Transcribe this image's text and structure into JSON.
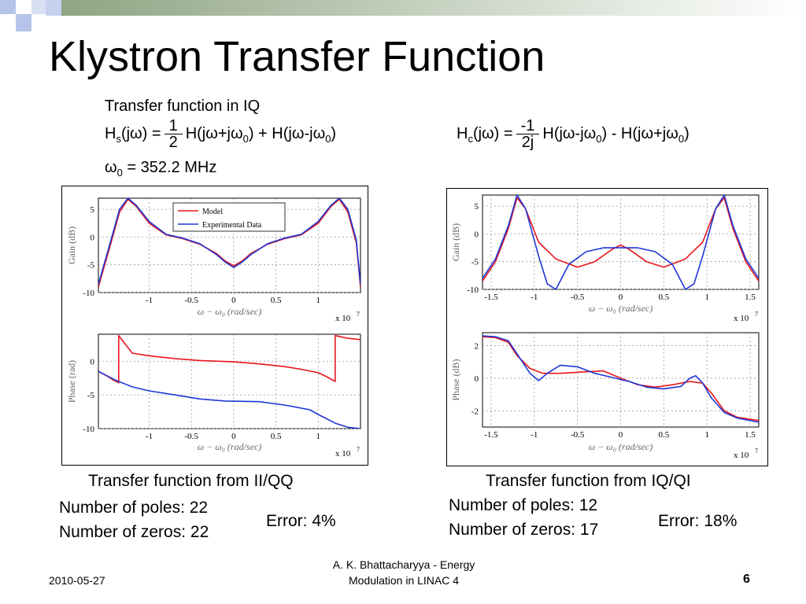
{
  "slide": {
    "title": "Klystron Transfer Function",
    "subtitle": "Transfer function in IQ",
    "hs_lhs": "H",
    "hs_sub": "s",
    "hs_arg": "(jω) =",
    "hs_num": "1",
    "hs_den": "2",
    "hs_rhs_a": "H(jω+jω",
    "hs_rhs_b": ") + H(jω-jω",
    "hs_rhs_c": ")",
    "hc_lhs": "H",
    "hc_sub": "c",
    "hc_arg": "(jω) =",
    "hc_num": "-1",
    "hc_den": "2j",
    "hc_rhs_a": "H(jω-jω",
    "hc_rhs_b": ") - H(jω+jω",
    "hc_rhs_c": ")",
    "omega_lhs": "ω",
    "omega_rhs": " = 352.2 MHz",
    "sub_zero": "0",
    "left_caption": "Transfer function from II/QQ",
    "left_poles": "Number of poles: 22",
    "left_zeros": "Number of zeros: 22",
    "left_error": "Error: 4%",
    "right_caption": "Transfer function from IQ/QI",
    "right_poles": "Number of poles: 12",
    "right_zeros": "Number of zeros: 17",
    "right_error": "Error: 18%",
    "footer_date": "2010-05-27",
    "footer_author": "A. K. Bhattacharyya - Energy Modulation in LINAC 4",
    "footer_page": "6",
    "colors": {
      "model": "#e8161c",
      "experimental": "#1f36d8",
      "bar_dark": "#9aae8e",
      "square_blue": "#b6c3ea"
    }
  },
  "chart_data": [
    {
      "type": "line",
      "xlabel": "ω − ω₀ (rad/sec)",
      "ylabel": "Gain (dB)",
      "xscale_note": "x 10",
      "xscale_exp": "7",
      "xlim": [
        -1.6,
        1.5
      ],
      "ylim": [
        -10,
        7
      ],
      "xticks": [
        -1,
        -0.5,
        0,
        0.5,
        1
      ],
      "xtick_labels": [
        "-1",
        "-0.5",
        "0",
        "0.5",
        "1"
      ],
      "yticks": [
        5,
        0,
        -5,
        -10
      ],
      "ytick_labels": [
        "5",
        "0",
        "-5",
        "-10"
      ],
      "grid": true,
      "legend": "top-center",
      "x": [
        -1.6,
        -1.45,
        -1.35,
        -1.25,
        -1.15,
        -1.0,
        -0.8,
        -0.6,
        -0.4,
        -0.2,
        -0.1,
        0,
        0.1,
        0.2,
        0.4,
        0.6,
        0.8,
        1.0,
        1.15,
        1.25,
        1.35,
        1.45,
        1.5
      ],
      "series": [
        {
          "name": "Model",
          "values": [
            -9,
            -1,
            4.5,
            6.8,
            5.5,
            2.5,
            0.4,
            -0.3,
            -1.3,
            -3,
            -4.3,
            -5.2,
            -4.3,
            -3,
            -1.3,
            -0.3,
            0.4,
            2.5,
            5.5,
            6.8,
            4.5,
            -1,
            -9
          ]
        },
        {
          "name": "Experimental Data",
          "values": [
            -8.5,
            -0.5,
            5,
            7,
            5.7,
            2.8,
            0.5,
            -0.2,
            -1.2,
            -3.2,
            -4.5,
            -5.5,
            -4.5,
            -3.2,
            -1.2,
            -0.2,
            0.5,
            2.8,
            5.7,
            7,
            5,
            -0.5,
            -8.5
          ]
        }
      ]
    },
    {
      "type": "line",
      "xlabel": "ω − ω₀ (rad/sec)",
      "ylabel": "Phase (rad)",
      "xscale_note": "x 10",
      "xscale_exp": "7",
      "xlim": [
        -1.6,
        1.5
      ],
      "ylim": [
        -10,
        4
      ],
      "xticks": [
        -1,
        -0.5,
        0,
        0.5,
        1
      ],
      "xtick_labels": [
        "-1",
        "-0.5",
        "0",
        "0.5",
        "1"
      ],
      "yticks": [
        0,
        -5,
        -10
      ],
      "ytick_labels": [
        "0",
        "-5",
        "-10"
      ],
      "grid": true,
      "series": [
        {
          "name": "Model",
          "x": [
            -1.6,
            -1.5,
            -1.42,
            -1.36,
            -1.36,
            -1.2,
            -1.0,
            -0.7,
            -0.4,
            0,
            0.3,
            0.6,
            0.8,
            1.0,
            1.1,
            1.2,
            1.2,
            1.35,
            1.5
          ],
          "values": [
            -1.5,
            -2.2,
            -2.8,
            -3.2,
            3.8,
            1.2,
            0.8,
            0.4,
            0.1,
            -0.1,
            -0.4,
            -0.8,
            -1.2,
            -1.7,
            -2.3,
            -3.0,
            3.8,
            3.4,
            3.2
          ]
        },
        {
          "name": "Experimental Data",
          "x": [
            -1.6,
            -1.4,
            -1.2,
            -1.0,
            -0.7,
            -0.4,
            -0.1,
            0.3,
            0.6,
            0.9,
            1.0,
            1.2,
            1.35,
            1.5
          ],
          "values": [
            -1.5,
            -2.8,
            -3.8,
            -4.4,
            -5.0,
            -5.6,
            -5.9,
            -6.0,
            -6.5,
            -7.2,
            -7.9,
            -9.2,
            -9.8,
            -10
          ]
        }
      ]
    },
    {
      "type": "line",
      "xlabel": "ω − ω₀ (rad/sec)",
      "ylabel": "Gain (dB)",
      "xscale_note": "x 10",
      "xscale_exp": "7",
      "xlim": [
        -1.6,
        1.6
      ],
      "ylim": [
        -10,
        7
      ],
      "xticks": [
        -1.5,
        -1,
        -0.5,
        0,
        0.5,
        1,
        1.5
      ],
      "xtick_labels": [
        "-1.5",
        "-1",
        "-0.5",
        "0",
        "0.5",
        "1",
        "1.5"
      ],
      "yticks": [
        5,
        0,
        -5,
        -10
      ],
      "ytick_labels": [
        "5",
        "0",
        "-5",
        "-10"
      ],
      "grid": true,
      "series": [
        {
          "name": "Model",
          "x": [
            -1.6,
            -1.45,
            -1.3,
            -1.2,
            -1.1,
            -0.95,
            -0.75,
            -0.5,
            -0.3,
            -0.1,
            0,
            0.1,
            0.3,
            0.5,
            0.75,
            0.95,
            1.1,
            1.2,
            1.3,
            1.45,
            1.6
          ],
          "values": [
            -8.5,
            -5,
            1,
            6.5,
            4.5,
            -1.5,
            -4.5,
            -6,
            -5,
            -2.8,
            -2,
            -2.8,
            -5,
            -6,
            -4.5,
            -1.5,
            4.5,
            6.5,
            1,
            -5,
            -8.5
          ]
        },
        {
          "name": "Experimental Data",
          "x": [
            -1.6,
            -1.45,
            -1.3,
            -1.2,
            -1.1,
            -0.95,
            -0.85,
            -0.75,
            -0.6,
            -0.4,
            -0.2,
            0,
            0.2,
            0.4,
            0.6,
            0.75,
            0.85,
            0.95,
            1.1,
            1.2,
            1.3,
            1.45,
            1.6
          ],
          "values": [
            -8,
            -4.5,
            1.5,
            7,
            4.5,
            -4,
            -9,
            -10,
            -5.5,
            -3.2,
            -2.5,
            -2.5,
            -2.5,
            -3.2,
            -5.5,
            -10,
            -9,
            -4,
            4.5,
            7,
            1.5,
            -4.5,
            -8
          ]
        }
      ]
    },
    {
      "type": "line",
      "xlabel": "ω − ω₀ (rad/sec)",
      "ylabel": "Phase (dB)",
      "xscale_note": "x 10",
      "xscale_exp": "7",
      "xlim": [
        -1.6,
        1.6
      ],
      "ylim": [
        -3,
        2.8
      ],
      "xticks": [
        -1.5,
        -1,
        -0.5,
        0,
        0.5,
        1,
        1.5
      ],
      "xtick_labels": [
        "-1.5",
        "-1",
        "-0.5",
        "0",
        "0.5",
        "1",
        "1.5"
      ],
      "yticks": [
        2,
        0,
        -2
      ],
      "ytick_labels": [
        "2",
        "0",
        "-2"
      ],
      "grid": true,
      "series": [
        {
          "name": "Model",
          "x": [
            -1.6,
            -1.45,
            -1.3,
            -1.2,
            -1.05,
            -0.9,
            -0.7,
            -0.4,
            -0.2,
            0,
            0.2,
            0.4,
            0.6,
            0.8,
            0.95,
            1.05,
            1.2,
            1.35,
            1.6
          ],
          "values": [
            2.55,
            2.5,
            2.2,
            1.4,
            0.6,
            0.3,
            0.3,
            0.4,
            0.45,
            0.0,
            -0.4,
            -0.55,
            -0.4,
            -0.2,
            -0.3,
            -0.9,
            -2.0,
            -2.4,
            -2.6
          ]
        },
        {
          "name": "Experimental Data",
          "x": [
            -1.6,
            -1.45,
            -1.3,
            -1.2,
            -1.05,
            -0.95,
            -0.85,
            -0.7,
            -0.5,
            -0.3,
            -0.1,
            0.1,
            0.3,
            0.5,
            0.7,
            0.8,
            0.87,
            0.95,
            1.05,
            1.2,
            1.35,
            1.6
          ],
          "values": [
            2.6,
            2.55,
            2.3,
            1.5,
            0.3,
            -0.15,
            0.3,
            0.8,
            0.7,
            0.3,
            0.05,
            -0.2,
            -0.55,
            -0.65,
            -0.5,
            0.0,
            0.15,
            -0.3,
            -1.2,
            -2.1,
            -2.45,
            -2.7
          ]
        }
      ]
    }
  ]
}
